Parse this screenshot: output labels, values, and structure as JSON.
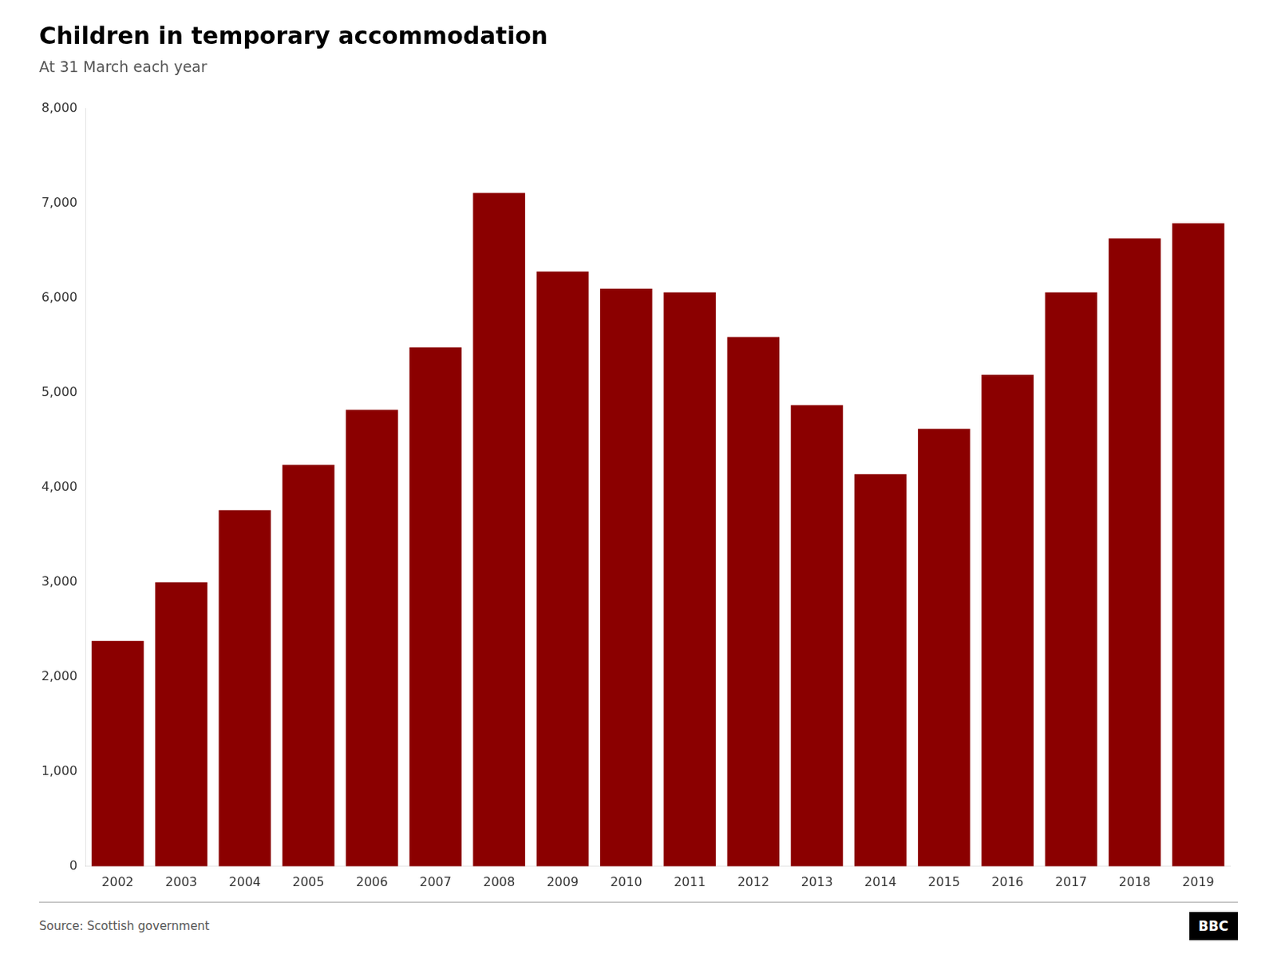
{
  "chart_data": {
    "type": "bar",
    "title": "Children in temporary accommodation",
    "subtitle": "At 31 March each year",
    "annotations": [
      "Source: Scottish government",
      "BBC"
    ],
    "categories": [
      "2002",
      "2003",
      "2004",
      "2005",
      "2006",
      "2007",
      "2008",
      "2009",
      "2010",
      "2011",
      "2012",
      "2013",
      "2014",
      "2015",
      "2016",
      "2017",
      "2018",
      "2019"
    ],
    "values": [
      2380,
      3000,
      3760,
      4240,
      4820,
      5480,
      7110,
      6280,
      6100,
      6060,
      5590,
      4870,
      4140,
      4620,
      5190,
      6060,
      6630,
      6790
    ],
    "color": "#8B0000",
    "ylim": [
      0,
      8000
    ],
    "yticks": [
      0,
      {
        "value": 1000,
        "label": "1,000"
      },
      {
        "value": 2000,
        "label": "2,000"
      },
      {
        "value": 3000,
        "label": "3,000"
      },
      {
        "value": 4000,
        "label": "4,000"
      },
      {
        "value": 5000,
        "label": "5,000"
      },
      {
        "value": 6000,
        "label": "6,000"
      },
      {
        "value": 7000,
        "label": "7,000"
      },
      {
        "value": 8000,
        "label": "8,000"
      }
    ],
    "grid": false
  }
}
